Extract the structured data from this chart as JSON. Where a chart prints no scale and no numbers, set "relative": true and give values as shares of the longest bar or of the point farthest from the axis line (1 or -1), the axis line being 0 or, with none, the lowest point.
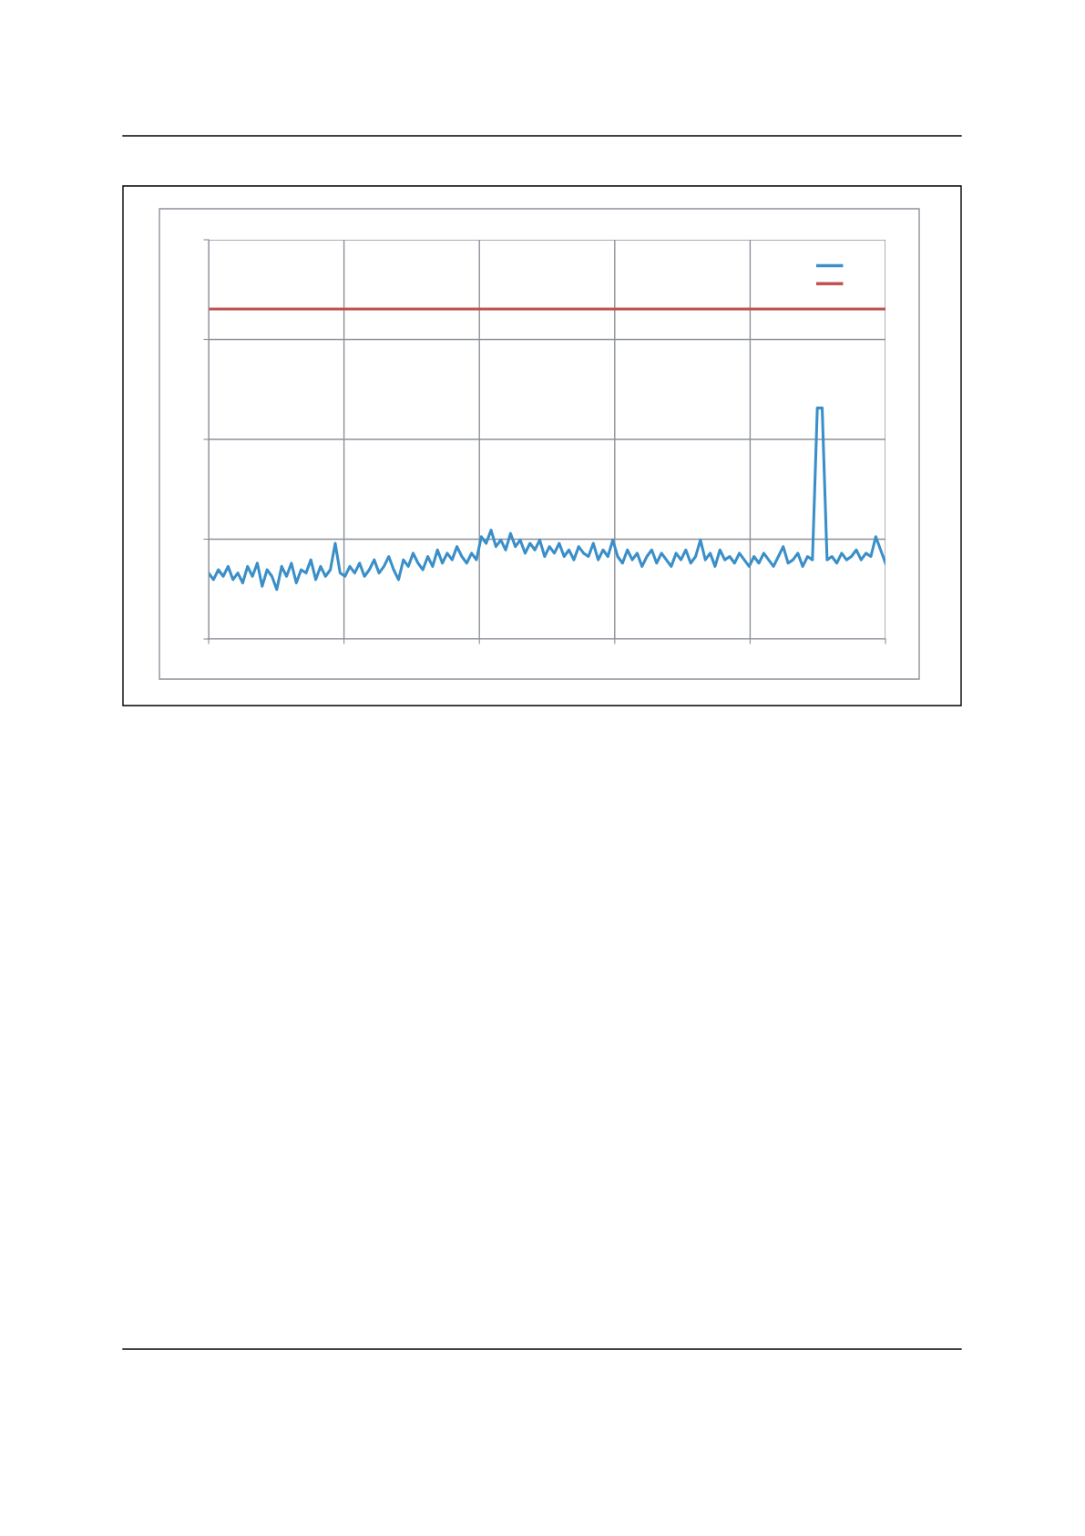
{
  "chart_data": {
    "type": "line",
    "relative": true,
    "grid": true,
    "marker": "none",
    "line_style": "solid",
    "categories": [
      null,
      null,
      null,
      null,
      null,
      null,
      null,
      null,
      null,
      null,
      null,
      null,
      null,
      null,
      null,
      null,
      null,
      null,
      null,
      null,
      null,
      null,
      null,
      null,
      null,
      null,
      null,
      null,
      null,
      null,
      null,
      null,
      null,
      null,
      null,
      null,
      null,
      null,
      null,
      null,
      null,
      null,
      null,
      null,
      null,
      null,
      null,
      null,
      null,
      null,
      null,
      null,
      null,
      null,
      null,
      null,
      null,
      null,
      null,
      null,
      null,
      null,
      null,
      null,
      null,
      null,
      null,
      null,
      null,
      null,
      null,
      null,
      null,
      null,
      null,
      null,
      null,
      null,
      null,
      null,
      null,
      null,
      null,
      null,
      null,
      null,
      null,
      null,
      null,
      null,
      null,
      null,
      null,
      null,
      null,
      null,
      null,
      null,
      null,
      null,
      null,
      null,
      null,
      null,
      null,
      null,
      null,
      null,
      null,
      null,
      null,
      null,
      null,
      null,
      null,
      null,
      null,
      null,
      null,
      null,
      null,
      null,
      null,
      null,
      null,
      null,
      null,
      null,
      null,
      null,
      null,
      null,
      null,
      null,
      null,
      null,
      null,
      null,
      null,
      null
    ],
    "series": [
      {
        "color": "#3a8fc9",
        "values": [
          0.2,
          0.18,
          0.21,
          0.19,
          0.22,
          0.18,
          0.2,
          0.17,
          0.22,
          0.19,
          0.23,
          0.16,
          0.21,
          0.19,
          0.15,
          0.22,
          0.19,
          0.23,
          0.17,
          0.21,
          0.2,
          0.24,
          0.18,
          0.22,
          0.19,
          0.21,
          0.29,
          0.2,
          0.19,
          0.22,
          0.2,
          0.23,
          0.19,
          0.21,
          0.24,
          0.2,
          0.22,
          0.25,
          0.21,
          0.18,
          0.24,
          0.22,
          0.26,
          0.23,
          0.21,
          0.25,
          0.22,
          0.27,
          0.23,
          0.26,
          0.24,
          0.28,
          0.25,
          0.23,
          0.26,
          0.24,
          0.31,
          0.29,
          0.33,
          0.28,
          0.3,
          0.27,
          0.32,
          0.28,
          0.3,
          0.26,
          0.29,
          0.27,
          0.3,
          0.25,
          0.28,
          0.26,
          0.29,
          0.25,
          0.27,
          0.24,
          0.28,
          0.26,
          0.25,
          0.29,
          0.24,
          0.27,
          0.25,
          0.3,
          0.25,
          0.23,
          0.27,
          0.24,
          0.26,
          0.22,
          0.25,
          0.27,
          0.23,
          0.26,
          0.24,
          0.22,
          0.26,
          0.24,
          0.27,
          0.23,
          0.25,
          0.3,
          0.24,
          0.26,
          0.22,
          0.27,
          0.24,
          0.25,
          0.23,
          0.26,
          0.24,
          0.22,
          0.25,
          0.23,
          0.26,
          0.24,
          0.22,
          0.25,
          0.28,
          0.23,
          0.24,
          0.26,
          0.22,
          0.25,
          0.24,
          0.7,
          0.7,
          0.24,
          0.25,
          0.23,
          0.26,
          0.24,
          0.25,
          0.27,
          0.24,
          0.26,
          0.25,
          0.31,
          0.27,
          0.23
        ]
      },
      {
        "color": "#c0504d",
        "values": [
          1,
          1,
          1,
          1,
          1,
          1,
          1,
          1,
          1,
          1,
          1,
          1,
          1,
          1,
          1,
          1,
          1,
          1,
          1,
          1,
          1,
          1,
          1,
          1,
          1,
          1,
          1,
          1,
          1,
          1,
          1,
          1,
          1,
          1,
          1,
          1,
          1,
          1,
          1,
          1,
          1,
          1,
          1,
          1,
          1,
          1,
          1,
          1,
          1,
          1,
          1,
          1,
          1,
          1,
          1,
          1,
          1,
          1,
          1,
          1,
          1,
          1,
          1,
          1,
          1,
          1,
          1,
          1,
          1,
          1,
          1,
          1,
          1,
          1,
          1,
          1,
          1,
          1,
          1,
          1,
          1,
          1,
          1,
          1,
          1,
          1,
          1,
          1,
          1,
          1,
          1,
          1,
          1,
          1,
          1,
          1,
          1,
          1,
          1,
          1,
          1,
          1,
          1,
          1,
          1,
          1,
          1,
          1,
          1,
          1,
          1,
          1,
          1,
          1,
          1,
          1,
          1,
          1,
          1,
          1,
          1,
          1,
          1,
          1,
          1,
          1,
          1,
          1,
          1,
          1,
          1,
          1,
          1,
          1,
          1,
          1,
          1,
          1,
          1,
          1
        ]
      }
    ]
  }
}
